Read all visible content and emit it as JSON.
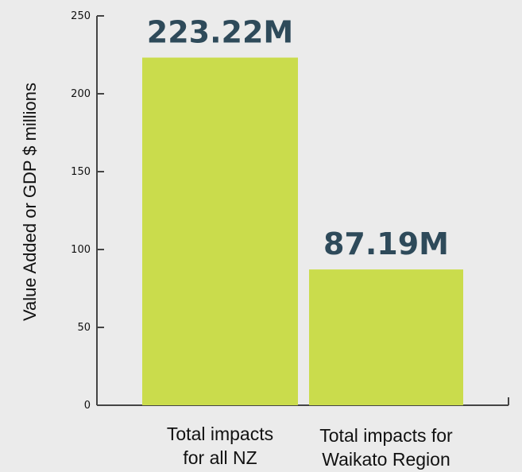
{
  "chart_data": {
    "type": "bar",
    "categories": [
      [
        "Total impacts",
        "for all NZ"
      ],
      [
        "Total impacts for",
        "Waikato Region"
      ]
    ],
    "values": [
      223.22,
      87.19
    ],
    "data_labels": [
      "223.22M",
      "87.19M"
    ],
    "title": "",
    "xlabel": "",
    "ylabel": "Value Added or GDP $ millions",
    "ylim": [
      0,
      250
    ],
    "yticks": [
      0,
      50,
      100,
      150,
      200,
      250
    ],
    "grid": false,
    "bar_color": "#cadc4c",
    "label_color": "#2e4a5a",
    "axis_color": "#444444"
  }
}
